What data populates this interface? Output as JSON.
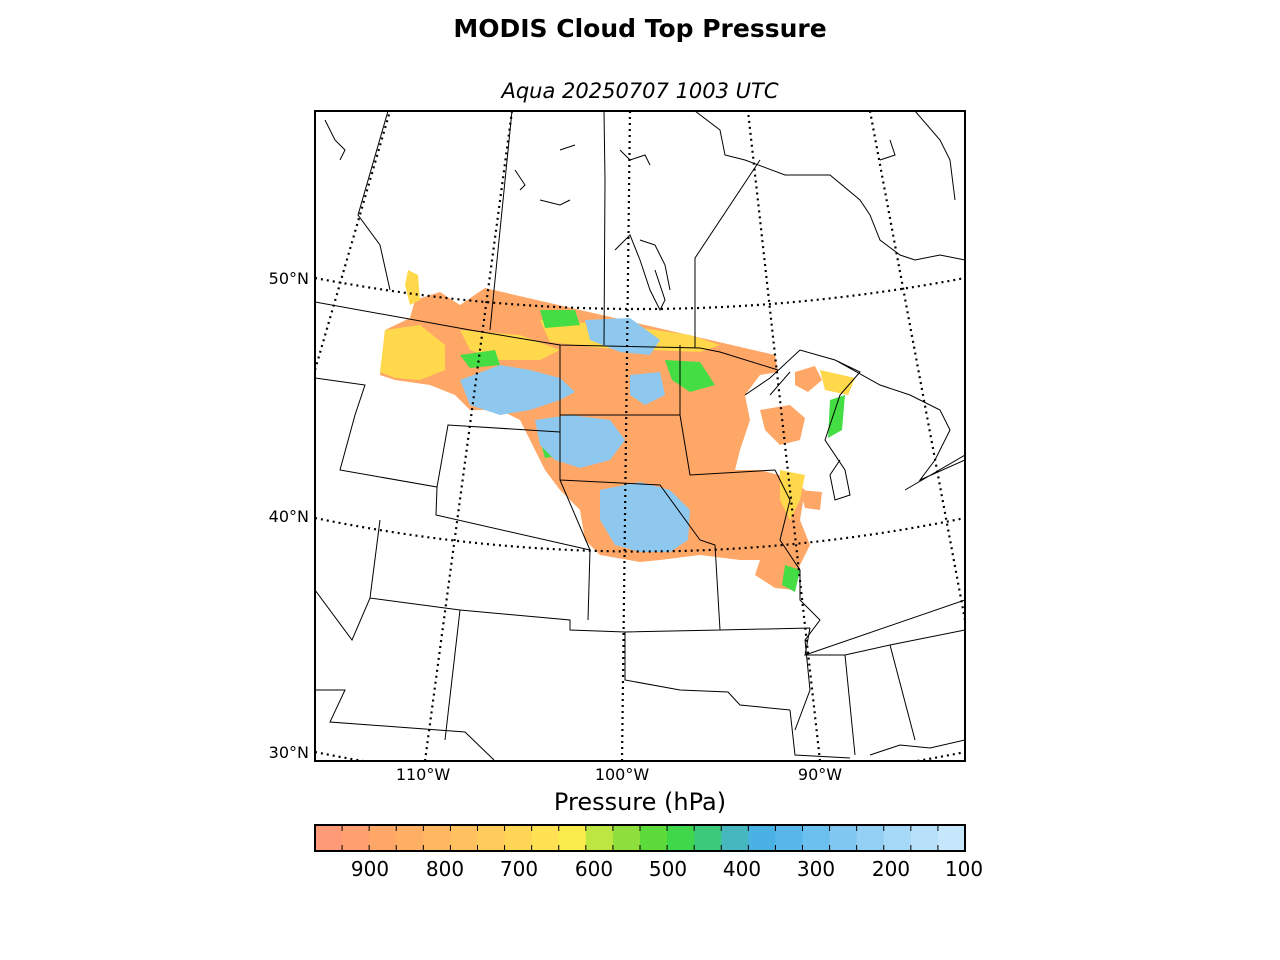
{
  "title": "MODIS Cloud Top Pressure",
  "subtitle": "Aqua 20250707 1003 UTC",
  "map": {
    "lat_labels": [
      "50°N",
      "40°N",
      "30°N"
    ],
    "lon_labels": [
      "110°W",
      "100°W",
      "90°W"
    ]
  },
  "colorbar": {
    "label": "Pressure (hPa)",
    "ticks": [
      "900",
      "800",
      "700",
      "600",
      "500",
      "400",
      "300",
      "200",
      "100"
    ],
    "colors": [
      "#ff9a78",
      "#ffa06e",
      "#ffa766",
      "#ffaf63",
      "#ffb762",
      "#ffc05f",
      "#ffcb5a",
      "#ffd556",
      "#ffe153",
      "#faeb4c",
      "#bde642",
      "#8edf3c",
      "#5cdb3a",
      "#3ed84a",
      "#3cc97c",
      "#47b7bf",
      "#4ab1e4",
      "#58b6ea",
      "#6cc0ef",
      "#80c8f1",
      "#93d0f4",
      "#a6d8f7",
      "#b7e0f9",
      "#c5e6fb"
    ]
  },
  "legend_colors": {
    "low_cloud": "#ffa766",
    "mid_cloud": "#ffd84c",
    "green": "#44dd44",
    "high_cloud": "#8ec8ee"
  }
}
